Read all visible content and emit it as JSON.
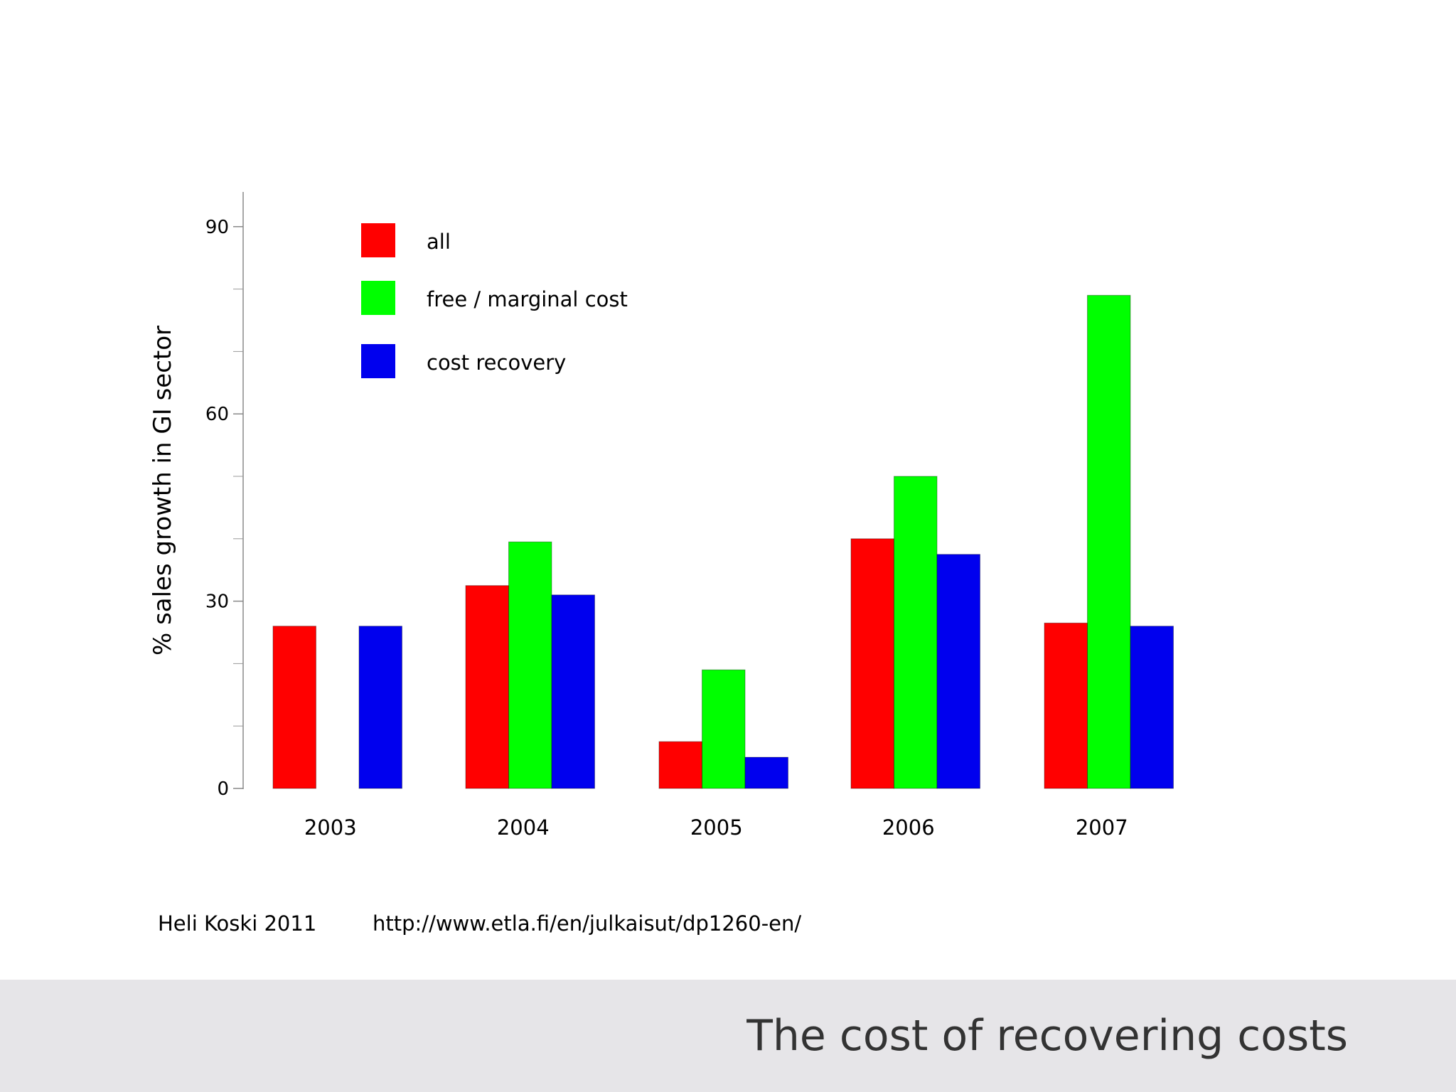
{
  "slide": {
    "title": "The cost of recovering costs",
    "source_author": "Heli Koski 2011",
    "source_url": "http://www.etla.fi/en/julkaisut/dp1260-en/"
  },
  "chart_data": {
    "type": "bar",
    "title": "",
    "xlabel": "",
    "ylabel": "% sales growth in GI sector",
    "ylim": [
      0,
      95
    ],
    "yticks": [
      0,
      30,
      60,
      90
    ],
    "ytick_labels": [
      "0",
      "30",
      "60",
      "90"
    ],
    "minor_yticks": [
      10,
      20,
      40,
      50,
      70,
      80
    ],
    "categories": [
      "2003",
      "2004",
      "2005",
      "2006",
      "2007"
    ],
    "legend_position": "top-left",
    "grid": false,
    "series": [
      {
        "name": "all",
        "color": "#ff0000",
        "values": [
          26,
          32.5,
          7.5,
          40,
          26.5
        ]
      },
      {
        "name": "free / marginal cost",
        "color": "#00ff00",
        "values": [
          null,
          39.5,
          19,
          50,
          79
        ]
      },
      {
        "name": "cost recovery",
        "color": "#0000ee",
        "values": [
          26,
          31,
          5,
          37.5,
          26
        ]
      }
    ]
  }
}
